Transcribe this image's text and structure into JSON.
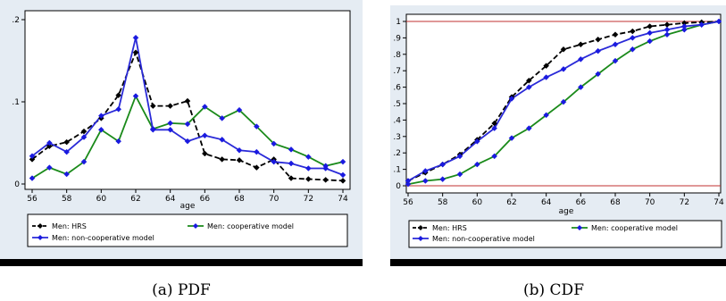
{
  "colors": {
    "hrs": "#000000",
    "cooperative": "#1a8a1a",
    "noncooperative": "#2a2ad8",
    "marker": "#1a1ae0",
    "panel_bg": "#e5ecf3",
    "refline": "#c03030"
  },
  "chart_data": [
    {
      "type": "line",
      "caption": "(a) PDF",
      "xlabel": "age",
      "ylabel": "",
      "xlim": [
        56,
        74
      ],
      "ylim": [
        0,
        0.2
      ],
      "xticks": [
        "56",
        "58",
        "60",
        "62",
        "64",
        "66",
        "68",
        "70",
        "72",
        "74"
      ],
      "yticks": [
        {
          "v": 0,
          "label": "0"
        },
        {
          "v": 0.1,
          "label": ".1"
        },
        {
          "v": 0.2,
          "label": ".2"
        }
      ],
      "grid": false,
      "legend_position": "bottom",
      "series": [
        {
          "name": "Men: HRS",
          "style": "hrs",
          "x": [
            56,
            57,
            58,
            59,
            60,
            61,
            62,
            63,
            64,
            65,
            66,
            67,
            68,
            69,
            70,
            71,
            72,
            73,
            74
          ],
          "y": [
            0.03,
            0.046,
            0.051,
            0.064,
            0.08,
            0.108,
            0.16,
            0.095,
            0.095,
            0.101,
            0.037,
            0.03,
            0.029,
            0.02,
            0.03,
            0.007,
            0.006,
            0.005,
            0.004
          ]
        },
        {
          "name": "Men: cooperative model",
          "style": "cooperative",
          "x": [
            56,
            57,
            58,
            59,
            60,
            61,
            62,
            63,
            64,
            65,
            66,
            67,
            68,
            69,
            70,
            71,
            72,
            73,
            74
          ],
          "y": [
            0.007,
            0.02,
            0.012,
            0.027,
            0.066,
            0.052,
            0.107,
            0.067,
            0.074,
            0.073,
            0.094,
            0.08,
            0.09,
            0.07,
            0.049,
            0.042,
            0.033,
            0.022,
            0.027
          ]
        },
        {
          "name": "Men: non-cooperative model",
          "style": "noncooperative",
          "x": [
            56,
            57,
            58,
            59,
            60,
            61,
            62,
            63,
            64,
            65,
            66,
            67,
            68,
            69,
            70,
            71,
            72,
            73,
            74
          ],
          "y": [
            0.034,
            0.05,
            0.039,
            0.057,
            0.083,
            0.091,
            0.178,
            0.066,
            0.066,
            0.052,
            0.059,
            0.054,
            0.041,
            0.039,
            0.027,
            0.025,
            0.019,
            0.019,
            0.011
          ]
        }
      ]
    },
    {
      "type": "line",
      "caption": "(b) CDF",
      "xlabel": "age",
      "ylabel": "",
      "xlim": [
        56,
        74
      ],
      "ylim": [
        0,
        1
      ],
      "xticks": [
        "56",
        "58",
        "60",
        "62",
        "64",
        "66",
        "68",
        "70",
        "72",
        "74"
      ],
      "yticks": [
        {
          "v": 0,
          "label": "0"
        },
        {
          "v": 0.1,
          "label": ".1"
        },
        {
          "v": 0.2,
          "label": ".2"
        },
        {
          "v": 0.3,
          "label": ".3"
        },
        {
          "v": 0.4,
          "label": ".4"
        },
        {
          "v": 0.5,
          "label": ".5"
        },
        {
          "v": 0.6,
          "label": ".6"
        },
        {
          "v": 0.7,
          "label": ".7"
        },
        {
          "v": 0.8,
          "label": ".8"
        },
        {
          "v": 0.9,
          "label": ".9"
        },
        {
          "v": 1,
          "label": "1"
        }
      ],
      "reference_lines_y": [
        0,
        1
      ],
      "grid": false,
      "legend_position": "bottom",
      "series": [
        {
          "name": "Men: HRS",
          "style": "hrs",
          "x": [
            56,
            57,
            58,
            59,
            60,
            61,
            62,
            63,
            64,
            65,
            66,
            67,
            68,
            69,
            70,
            71,
            72,
            73,
            74
          ],
          "y": [
            0.03,
            0.08,
            0.13,
            0.19,
            0.28,
            0.38,
            0.54,
            0.64,
            0.73,
            0.83,
            0.86,
            0.89,
            0.92,
            0.94,
            0.97,
            0.98,
            0.99,
            0.995,
            1.0
          ]
        },
        {
          "name": "Men: cooperative model",
          "style": "cooperative",
          "x": [
            56,
            57,
            58,
            59,
            60,
            61,
            62,
            63,
            64,
            65,
            66,
            67,
            68,
            69,
            70,
            71,
            72,
            73,
            74
          ],
          "y": [
            0.01,
            0.03,
            0.04,
            0.07,
            0.13,
            0.18,
            0.29,
            0.35,
            0.43,
            0.51,
            0.6,
            0.68,
            0.76,
            0.83,
            0.88,
            0.92,
            0.95,
            0.98,
            1.0
          ]
        },
        {
          "name": "Men: non-cooperative model",
          "style": "noncooperative",
          "x": [
            56,
            57,
            58,
            59,
            60,
            61,
            62,
            63,
            64,
            65,
            66,
            67,
            68,
            69,
            70,
            71,
            72,
            73,
            74
          ],
          "y": [
            0.03,
            0.09,
            0.13,
            0.18,
            0.27,
            0.35,
            0.53,
            0.6,
            0.66,
            0.71,
            0.77,
            0.82,
            0.86,
            0.9,
            0.93,
            0.95,
            0.97,
            0.98,
            1.0
          ]
        }
      ]
    }
  ]
}
